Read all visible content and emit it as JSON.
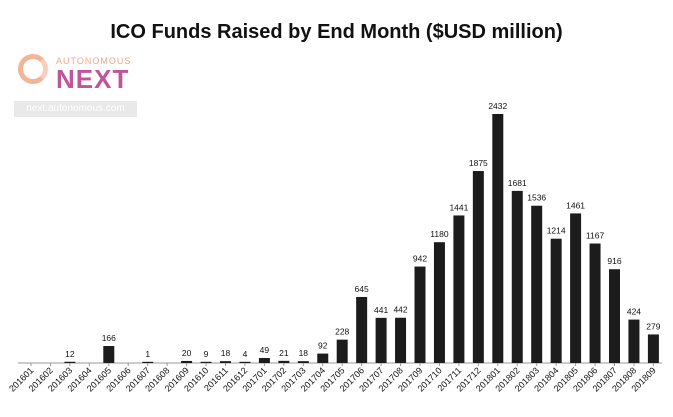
{
  "chart_data": {
    "type": "bar",
    "title": "ICO Funds Raised by End Month ($USD million)",
    "xlabel": "",
    "ylabel": "",
    "ylim": [
      0,
      2432
    ],
    "categories": [
      "201601",
      "201602",
      "201603",
      "201604",
      "201605",
      "201606",
      "201607",
      "201608",
      "201609",
      "201610",
      "201611",
      "201612",
      "201701",
      "201702",
      "201703",
      "201704",
      "201705",
      "201706",
      "201707",
      "201708",
      "201709",
      "201710",
      "201711",
      "201712",
      "201801",
      "201802",
      "201803",
      "201804",
      "201805",
      "201806",
      "201807",
      "201808",
      "201809"
    ],
    "values": [
      null,
      null,
      12,
      null,
      166,
      null,
      1,
      null,
      20,
      9,
      18,
      4,
      49,
      21,
      18,
      92,
      228,
      645,
      441,
      442,
      942,
      1180,
      1441,
      1875,
      2432,
      1681,
      1536,
      1214,
      1461,
      1167,
      916,
      424,
      279
    ],
    "bar_color": "#1c1c1c"
  },
  "logo": {
    "top_text": "AUTONOMOUS",
    "main_text": "NEXT",
    "url": "next.autonomous.com"
  }
}
